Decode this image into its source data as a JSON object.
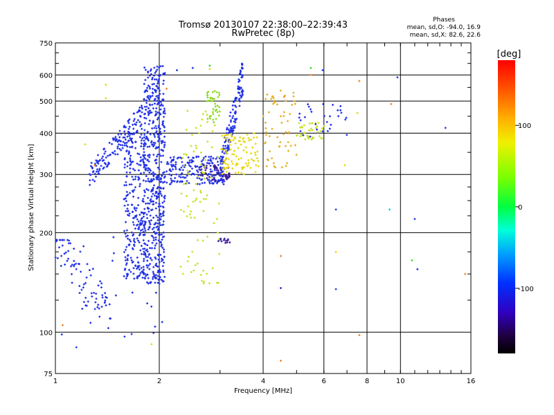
{
  "chart_data": {
    "type": "scatter",
    "title": "Tromsø 20130107 22:38:00–22:39:43",
    "subtitle": "RwPretec (8p)",
    "xlabel": "Frequency [MHz]",
    "ylabel": "Stationary phase Virtual Height [km]",
    "x_scale": "log",
    "y_scale": "log",
    "xlim": [
      1,
      16
    ],
    "ylim": [
      75,
      750
    ],
    "x_ticks": [
      1,
      2,
      4,
      6,
      8,
      10,
      16
    ],
    "y_ticks": [
      75,
      100,
      200,
      300,
      400,
      500,
      600,
      750
    ],
    "grid": true,
    "stats": {
      "header": "Phases",
      "line_o": "mean, sd,O: -94.0, 16.9",
      "line_x": "mean, sd,X:  82.6, 22.6"
    },
    "colorbar": {
      "label": "[deg]",
      "range": [
        -180,
        180
      ],
      "ticks": [
        100,
        0,
        -100
      ]
    },
    "colors": {
      "deep_blue": "#1f2fe6",
      "purple": "#3a1a9e",
      "cyan": "#00c8e0",
      "green": "#33dd22",
      "yellow_green": "#c8e020",
      "yellow": "#e8d800",
      "orange": "#f08020",
      "red": "#e81010"
    },
    "clusters": [
      {
        "id": "main-o-trace",
        "color": "#1f2fe6",
        "count": 520,
        "f_range": [
          1.8,
          2.08
        ],
        "h_range": [
          140,
          640
        ]
      },
      {
        "id": "f-trace-left-column",
        "color": "#1f2fe6",
        "count": 260,
        "f_range": [
          1.58,
          1.82
        ],
        "h_range": [
          145,
          420
        ]
      },
      {
        "id": "rising-trace",
        "color": "#1f2fe6",
        "count": 140,
        "f_range": [
          1.25,
          1.8
        ],
        "h_range": [
          295,
          460
        ]
      },
      {
        "id": "low-freq-trace",
        "color": "#1f2fe6",
        "count": 80,
        "f_range": [
          1.0,
          1.45
        ],
        "h_range": [
          110,
          190
        ]
      },
      {
        "id": "mid-band-300",
        "color": "#1f2fe6",
        "count": 180,
        "f_range": [
          2.1,
          3.1
        ],
        "h_range": [
          280,
          340
        ]
      },
      {
        "id": "mid-band-purple",
        "color": "#3a1a9e",
        "count": 60,
        "f_range": [
          2.6,
          3.2
        ],
        "h_range": [
          285,
          320
        ]
      },
      {
        "id": "rising-3mhz",
        "color": "#1f2fe6",
        "count": 140,
        "f_range": [
          3.0,
          3.5
        ],
        "h_range": [
          300,
          600
        ]
      },
      {
        "id": "purple-190",
        "color": "#3a1a9e",
        "count": 14,
        "f_range": [
          2.95,
          3.2
        ],
        "h_range": [
          186,
          192
        ]
      },
      {
        "id": "x-trace-yellow",
        "color": "#c8e020",
        "count": 90,
        "f_range": [
          2.3,
          3.0
        ],
        "h_range": [
          140,
          470
        ]
      },
      {
        "id": "x-trace-green-upper",
        "color": "#88d820",
        "count": 40,
        "f_range": [
          2.75,
          3.0
        ],
        "h_range": [
          430,
          540
        ]
      },
      {
        "id": "x-trace-3-4",
        "color": "#e8d800",
        "count": 100,
        "f_range": [
          3.0,
          3.9
        ],
        "h_range": [
          300,
          400
        ]
      },
      {
        "id": "x-trace-4-5",
        "color": "#e0b020",
        "count": 60,
        "f_range": [
          4.0,
          5.0
        ],
        "h_range": [
          310,
          540
        ]
      },
      {
        "id": "x-trace-5-6",
        "color": "#c8e020",
        "count": 40,
        "f_range": [
          5.0,
          6.0
        ],
        "h_range": [
          380,
          430
        ]
      },
      {
        "id": "blue-5-7",
        "color": "#1f2fe6",
        "count": 30,
        "f_range": [
          5.0,
          7.0
        ],
        "h_range": [
          390,
          490
        ]
      },
      {
        "id": "scatter-lower",
        "color": "#1f2fe6",
        "count": 30,
        "f_range": [
          1.0,
          2.1
        ],
        "h_range": [
          95,
          200
        ]
      }
    ],
    "isolated_points": [
      {
        "f": 13.5,
        "h": 415,
        "color": "#1f2fe6"
      },
      {
        "f": 9.8,
        "h": 590,
        "color": "#1f2fe6"
      },
      {
        "f": 9.4,
        "h": 490,
        "color": "#f08020"
      },
      {
        "f": 7.6,
        "h": 575,
        "color": "#f08020"
      },
      {
        "f": 7.5,
        "h": 460,
        "color": "#e8d800"
      },
      {
        "f": 6.5,
        "h": 235,
        "color": "#1f2fe6"
      },
      {
        "f": 6.5,
        "h": 135,
        "color": "#1f2fe6"
      },
      {
        "f": 6.5,
        "h": 175,
        "color": "#e8d800"
      },
      {
        "f": 7.6,
        "h": 98,
        "color": "#f08020"
      },
      {
        "f": 11.0,
        "h": 220,
        "color": "#1f2fe6"
      },
      {
        "f": 11.2,
        "h": 155,
        "color": "#1f2fe6"
      },
      {
        "f": 10.8,
        "h": 165,
        "color": "#33dd22"
      },
      {
        "f": 15.4,
        "h": 150,
        "color": "#f08020"
      },
      {
        "f": 9.3,
        "h": 235,
        "color": "#00c8e0"
      },
      {
        "f": 4.5,
        "h": 82,
        "color": "#f08020"
      },
      {
        "f": 4.5,
        "h": 136,
        "color": "#1f2fe6"
      },
      {
        "f": 4.5,
        "h": 170,
        "color": "#f08020"
      },
      {
        "f": 1.9,
        "h": 92,
        "color": "#e8d800"
      },
      {
        "f": 1.15,
        "h": 90,
        "color": "#1f2fe6"
      },
      {
        "f": 1.05,
        "h": 105,
        "color": "#f08020"
      },
      {
        "f": 2.8,
        "h": 640,
        "color": "#33dd22"
      },
      {
        "f": 2.8,
        "h": 625,
        "color": "#e8d800"
      },
      {
        "f": 2.5,
        "h": 630,
        "color": "#1f2fe6"
      },
      {
        "f": 2.25,
        "h": 620,
        "color": "#1f2fe6"
      },
      {
        "f": 5.5,
        "h": 630,
        "color": "#33dd22"
      },
      {
        "f": 5.5,
        "h": 600,
        "color": "#f08020"
      },
      {
        "f": 5.95,
        "h": 620,
        "color": "#1f2fe6"
      },
      {
        "f": 1.4,
        "h": 560,
        "color": "#e8d800"
      },
      {
        "f": 1.4,
        "h": 510,
        "color": "#e8d800"
      },
      {
        "f": 1.22,
        "h": 370,
        "color": "#e8d800"
      },
      {
        "f": 1.3,
        "h": 320,
        "color": "#f08020"
      },
      {
        "f": 6.9,
        "h": 320,
        "color": "#e8d800"
      },
      {
        "f": 2.1,
        "h": 545,
        "color": "#f08020"
      },
      {
        "f": 4.6,
        "h": 515,
        "color": "#f08020"
      }
    ]
  }
}
